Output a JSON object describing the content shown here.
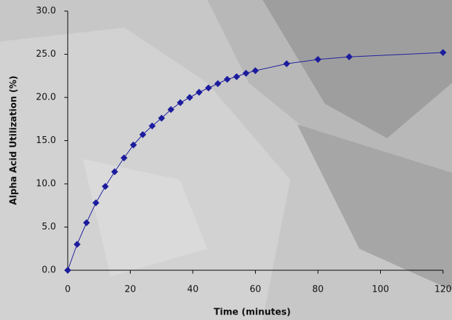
{
  "chart_data": {
    "type": "line",
    "x_label": "Time (minutes)",
    "y_label": "Alpha Acid Utilization (%)",
    "x": [
      0,
      3,
      6,
      9,
      12,
      15,
      18,
      21,
      24,
      27,
      30,
      33,
      36,
      39,
      42,
      45,
      48,
      51,
      54,
      57,
      60,
      70,
      80,
      90,
      120
    ],
    "values": [
      0,
      3.0,
      5.5,
      7.8,
      9.7,
      11.4,
      13.0,
      14.5,
      15.7,
      16.7,
      17.6,
      18.6,
      19.4,
      20.0,
      20.6,
      21.1,
      21.6,
      22.1,
      22.4,
      22.8,
      23.1,
      23.9,
      24.4,
      24.7,
      25.2
    ],
    "color": "#1c1c9e",
    "marker": "diamond",
    "xlim": [
      0,
      120
    ],
    "xticks": [
      0,
      20,
      40,
      60,
      80,
      100,
      120
    ],
    "ylim": [
      0,
      30
    ],
    "yticks": [
      {
        "value": 0,
        "label": "0.0"
      },
      {
        "value": 5,
        "label": "5.0"
      },
      {
        "value": 10,
        "label": "10.0"
      },
      {
        "value": 15,
        "label": "15.0"
      },
      {
        "value": 20,
        "label": "20.0"
      },
      {
        "value": 25,
        "label": "25.0"
      },
      {
        "value": 30,
        "label": "30.0"
      }
    ]
  }
}
